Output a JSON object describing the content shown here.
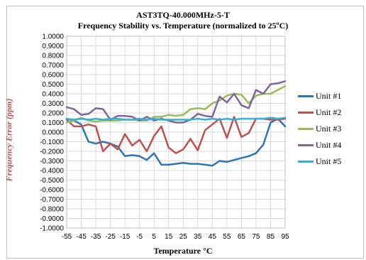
{
  "chart_data": {
    "type": "line",
    "title": "AST3TQ-40.000MHz-5-T",
    "subtitle": "Frequency Stability vs. Temperature (normalized to 25ºC)",
    "xlabel": "Temperature °C",
    "ylabel": "Frequency Error (ppm)",
    "xlim": [
      -55,
      95
    ],
    "ylim": [
      -1.0,
      1.0
    ],
    "x_ticks": [
      "-55",
      "-45",
      "-35",
      "-25",
      "-15",
      "-5",
      "5",
      "15",
      "25",
      "35",
      "45",
      "55",
      "65",
      "75",
      "85",
      "95"
    ],
    "y_ticks": [
      "1.0000",
      "0.9000",
      "0.8000",
      "0.7000",
      "0.6000",
      "0.5000",
      "0.4000",
      "0.3000",
      "0.2000",
      "0.1000",
      "0.0000",
      "-0.1000",
      "-0.2000",
      "-0.3000",
      "-0.4000",
      "-0.5000",
      "-0.6000",
      "-0.7000",
      "-0.8000",
      "-0.9000",
      "-1.0000"
    ],
    "grid": true,
    "legend_position": "right",
    "series": [
      {
        "name": "Unit #1",
        "color": "#2e75b6",
        "x": [
          -55,
          -50,
          -45,
          -40,
          -35,
          -30,
          -25,
          -20,
          -15,
          -10,
          -5,
          0,
          5,
          10,
          15,
          20,
          25,
          30,
          35,
          40,
          45,
          50,
          55,
          60,
          65,
          70,
          75,
          80,
          85,
          90,
          95
        ],
        "y": [
          0.14,
          0.12,
          0.08,
          -0.1,
          -0.12,
          -0.1,
          -0.12,
          -0.15,
          -0.25,
          -0.24,
          -0.25,
          -0.29,
          -0.22,
          -0.34,
          -0.34,
          -0.33,
          -0.32,
          -0.33,
          -0.33,
          -0.34,
          -0.35,
          -0.3,
          -0.31,
          -0.29,
          -0.27,
          -0.25,
          -0.22,
          -0.13,
          0.1,
          0.14,
          0.06
        ]
      },
      {
        "name": "Unit #2",
        "color": "#c0504d",
        "x": [
          -55,
          -50,
          -45,
          -40,
          -35,
          -30,
          -25,
          -20,
          -15,
          -10,
          -5,
          0,
          5,
          10,
          15,
          20,
          25,
          30,
          35,
          40,
          45,
          50,
          55,
          60,
          65,
          70,
          75,
          80,
          85,
          90,
          95
        ],
        "y": [
          0.13,
          0.06,
          0.06,
          0.08,
          0.06,
          -0.2,
          -0.12,
          -0.18,
          -0.02,
          -0.14,
          -0.08,
          -0.2,
          -0.04,
          0.06,
          -0.16,
          -0.22,
          -0.18,
          -0.07,
          -0.19,
          0.02,
          0.08,
          0.14,
          -0.06,
          0.16,
          -0.05,
          -0.01,
          0.14,
          0.14,
          0.13,
          0.13,
          0.14
        ]
      },
      {
        "name": "Unit #3",
        "color": "#9bbb59",
        "x": [
          -55,
          -50,
          -45,
          -40,
          -35,
          -30,
          -25,
          -20,
          -15,
          -10,
          -5,
          0,
          5,
          10,
          15,
          20,
          25,
          30,
          35,
          40,
          45,
          50,
          55,
          60,
          65,
          70,
          75,
          80,
          85,
          90,
          95
        ],
        "y": [
          0.1,
          0.12,
          0.15,
          0.12,
          0.11,
          0.12,
          0.12,
          0.12,
          0.13,
          0.13,
          0.12,
          0.12,
          0.16,
          0.16,
          0.18,
          0.17,
          0.18,
          0.24,
          0.25,
          0.24,
          0.3,
          0.33,
          0.38,
          0.4,
          0.39,
          0.3,
          0.38,
          0.4,
          0.4,
          0.44,
          0.48
        ]
      },
      {
        "name": "Unit #4",
        "color": "#8064a2",
        "x": [
          -55,
          -50,
          -45,
          -40,
          -35,
          -30,
          -25,
          -20,
          -15,
          -10,
          -5,
          0,
          5,
          10,
          15,
          20,
          25,
          30,
          35,
          40,
          45,
          50,
          55,
          60,
          65,
          70,
          75,
          80,
          85,
          90,
          95
        ],
        "y": [
          0.26,
          0.24,
          0.18,
          0.19,
          0.25,
          0.24,
          0.13,
          0.17,
          0.17,
          0.16,
          0.12,
          0.16,
          0.12,
          0.14,
          0.12,
          0.1,
          0.1,
          0.13,
          0.19,
          0.17,
          0.16,
          0.37,
          0.31,
          0.4,
          0.28,
          0.25,
          0.44,
          0.4,
          0.5,
          0.51,
          0.53
        ]
      },
      {
        "name": "Unit #5",
        "color": "#31b0d8",
        "x": [
          -55,
          -50,
          -45,
          -40,
          -35,
          -30,
          -25,
          -20,
          -15,
          -10,
          -5,
          0,
          5,
          10,
          15,
          20,
          25,
          30,
          35,
          40,
          45,
          50,
          55,
          60,
          65,
          70,
          75,
          80,
          85,
          90,
          95
        ],
        "y": [
          0.14,
          0.13,
          0.14,
          0.13,
          0.14,
          0.13,
          0.14,
          0.14,
          0.13,
          0.13,
          0.14,
          0.13,
          0.14,
          0.13,
          0.13,
          0.13,
          0.13,
          0.13,
          0.14,
          0.13,
          0.14,
          0.13,
          0.14,
          0.13,
          0.14,
          0.14,
          0.14,
          0.14,
          0.15,
          0.14,
          0.15
        ]
      }
    ]
  }
}
